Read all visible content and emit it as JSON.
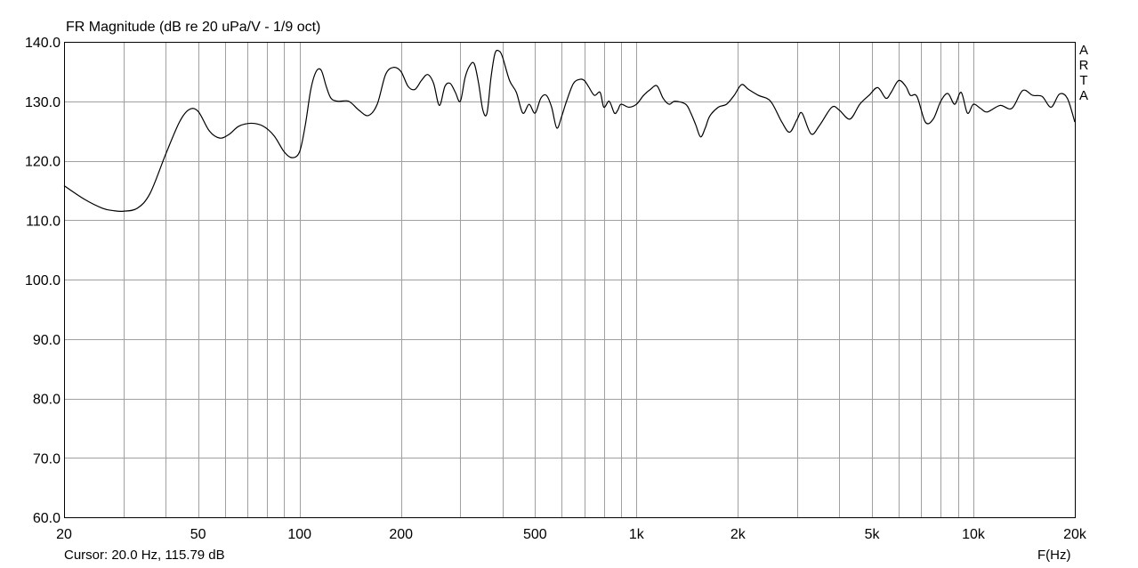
{
  "title": "FR Magnitude (dB re 20 uPa/V - 1/9 oct)",
  "cursor_readout": "Cursor: 20.0 Hz, 115.79 dB",
  "xunit_label": "F(Hz)",
  "brand_letters": [
    "A",
    "R",
    "T",
    "A"
  ],
  "colors": {
    "background": "#ffffff",
    "grid": "#a0a0a0",
    "curve": "#000000",
    "frame": "#000000"
  },
  "chart_data": {
    "type": "line",
    "title": "FR Magnitude (dB re 20 uPa/V - 1/9 oct)",
    "xlabel": "F(Hz)",
    "ylabel": "",
    "xscale": "log",
    "xlim": [
      20,
      20000
    ],
    "ylim": [
      60,
      140
    ],
    "grid": true,
    "yticks": [
      {
        "value": 140,
        "label": "140.0"
      },
      {
        "value": 130,
        "label": "130.0"
      },
      {
        "value": 120,
        "label": "120.0"
      },
      {
        "value": 110,
        "label": "110.0"
      },
      {
        "value": 100,
        "label": "100.0"
      },
      {
        "value": 90,
        "label": "90.0"
      },
      {
        "value": 80,
        "label": "80.0"
      },
      {
        "value": 70,
        "label": "70.0"
      },
      {
        "value": 60,
        "label": "60.0"
      }
    ],
    "xticks": [
      {
        "value": 20,
        "label": "20"
      },
      {
        "value": 50,
        "label": "50"
      },
      {
        "value": 100,
        "label": "100"
      },
      {
        "value": 200,
        "label": "200"
      },
      {
        "value": 500,
        "label": "500"
      },
      {
        "value": 1000,
        "label": "1k"
      },
      {
        "value": 2000,
        "label": "2k"
      },
      {
        "value": 5000,
        "label": "5k"
      },
      {
        "value": 10000,
        "label": "10k"
      },
      {
        "value": 20000,
        "label": "20k"
      }
    ],
    "series": [
      {
        "x": [
          20,
          23,
          26,
          28,
          30,
          33,
          36,
          40,
          44,
          47,
          50,
          54,
          58,
          62,
          66,
          72,
          78,
          84,
          90,
          95,
          100,
          104,
          108,
          112,
          116,
          120,
          124,
          130,
          140,
          150,
          160,
          170,
          180,
          190,
          200,
          210,
          220,
          230,
          240,
          250,
          260,
          270,
          280,
          290,
          300,
          310,
          320,
          330,
          340,
          350,
          360,
          370,
          380,
          390,
          400,
          420,
          440,
          460,
          480,
          500,
          520,
          540,
          560,
          580,
          600,
          620,
          650,
          680,
          700,
          720,
          750,
          780,
          800,
          830,
          860,
          880,
          900,
          950,
          1000,
          1050,
          1100,
          1150,
          1200,
          1250,
          1300,
          1400,
          1450,
          1500,
          1550,
          1600,
          1650,
          1750,
          1850,
          1950,
          2050,
          2150,
          2300,
          2500,
          2700,
          2850,
          3000,
          3100,
          3300,
          3500,
          3800,
          4000,
          4300,
          4600,
          4900,
          5200,
          5500,
          5700,
          6000,
          6300,
          6500,
          6800,
          7200,
          7600,
          8000,
          8400,
          8800,
          9200,
          9600,
          10000,
          10500,
          11000,
          12000,
          13000,
          14000,
          15000,
          16000,
          17000,
          18000,
          19000,
          20000
        ],
        "values": [
          115.8,
          113.5,
          112.0,
          111.6,
          111.5,
          112.0,
          114.5,
          121.0,
          126.5,
          128.6,
          128.3,
          125.0,
          123.8,
          124.5,
          125.8,
          126.3,
          125.8,
          124.2,
          121.5,
          120.5,
          121.5,
          126.0,
          132.0,
          135.0,
          135.2,
          132.5,
          130.5,
          130.0,
          130.0,
          128.5,
          127.6,
          129.5,
          134.5,
          135.7,
          135.0,
          132.5,
          132.0,
          133.5,
          134.5,
          133.0,
          129.3,
          132.5,
          133.0,
          131.5,
          130.0,
          134.0,
          136.0,
          136.3,
          133.0,
          128.5,
          128.0,
          134.0,
          138.0,
          138.5,
          137.5,
          133.5,
          131.5,
          128.0,
          129.5,
          128.0,
          130.5,
          131.0,
          129.0,
          125.5,
          127.5,
          130.0,
          133.0,
          133.7,
          133.5,
          132.5,
          131.0,
          131.5,
          129.0,
          130.0,
          128.0,
          128.5,
          129.5,
          129.0,
          129.5,
          131.0,
          132.0,
          132.6,
          130.5,
          129.5,
          130.0,
          129.5,
          128.0,
          126.0,
          124.0,
          125.5,
          127.5,
          129.0,
          129.5,
          131.0,
          132.8,
          132.0,
          131.0,
          130.0,
          126.5,
          124.8,
          127.0,
          128.0,
          124.5,
          126.0,
          129.0,
          128.5,
          127.0,
          129.5,
          131.0,
          132.3,
          130.5,
          131.5,
          133.5,
          132.5,
          131.0,
          130.8,
          126.5,
          127.0,
          130.0,
          131.3,
          129.5,
          131.5,
          128.0,
          129.5,
          128.8,
          128.2,
          129.3,
          128.8,
          131.8,
          131.0,
          130.8,
          129.0,
          131.2,
          130.5,
          126.5
        ]
      }
    ]
  }
}
